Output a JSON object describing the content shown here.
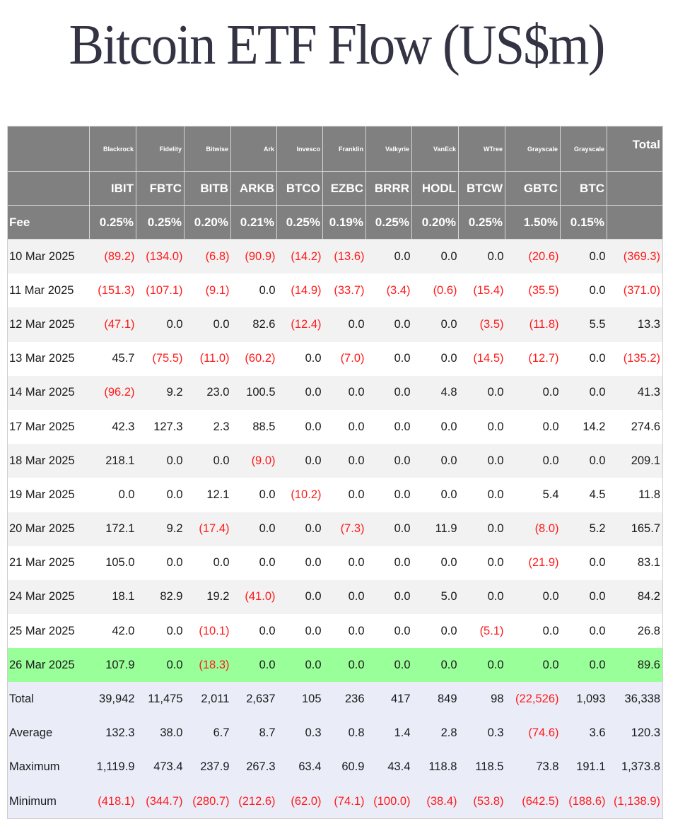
{
  "page": {
    "title": "Bitcoin ETF Flow (US$m)"
  },
  "table": {
    "issuers": [
      "Blackrock",
      "Fidelity",
      "Bitwise",
      "Ark",
      "Invesco",
      "Franklin",
      "Valkyrie",
      "VanEck",
      "WTree",
      "Grayscale",
      "Grayscale"
    ],
    "total_header": "Total",
    "tickers": [
      "IBIT",
      "FBTC",
      "BITB",
      "ARKB",
      "BTCO",
      "EZBC",
      "BRRR",
      "HODL",
      "BTCW",
      "GBTC",
      "BTC"
    ],
    "fee_label": "Fee",
    "fees": [
      "0.25%",
      "0.25%",
      "0.20%",
      "0.21%",
      "0.25%",
      "0.19%",
      "0.25%",
      "0.20%",
      "0.25%",
      "1.50%",
      "0.15%"
    ],
    "rows": [
      {
        "date": "10 Mar 2025",
        "values": [
          "(89.2)",
          "(134.0)",
          "(6.8)",
          "(90.9)",
          "(14.2)",
          "(13.6)",
          "0.0",
          "0.0",
          "0.0",
          "(20.6)",
          "0.0"
        ],
        "total": "(369.3)"
      },
      {
        "date": "11 Mar 2025",
        "values": [
          "(151.3)",
          "(107.1)",
          "(9.1)",
          "0.0",
          "(14.9)",
          "(33.7)",
          "(3.4)",
          "(0.6)",
          "(15.4)",
          "(35.5)",
          "0.0"
        ],
        "total": "(371.0)"
      },
      {
        "date": "12 Mar 2025",
        "values": [
          "(47.1)",
          "0.0",
          "0.0",
          "82.6",
          "(12.4)",
          "0.0",
          "0.0",
          "0.0",
          "(3.5)",
          "(11.8)",
          "5.5"
        ],
        "total": "13.3"
      },
      {
        "date": "13 Mar 2025",
        "values": [
          "45.7",
          "(75.5)",
          "(11.0)",
          "(60.2)",
          "0.0",
          "(7.0)",
          "0.0",
          "0.0",
          "(14.5)",
          "(12.7)",
          "0.0"
        ],
        "total": "(135.2)"
      },
      {
        "date": "14 Mar 2025",
        "values": [
          "(96.2)",
          "9.2",
          "23.0",
          "100.5",
          "0.0",
          "0.0",
          "0.0",
          "4.8",
          "0.0",
          "0.0",
          "0.0"
        ],
        "total": "41.3"
      },
      {
        "date": "17 Mar 2025",
        "values": [
          "42.3",
          "127.3",
          "2.3",
          "88.5",
          "0.0",
          "0.0",
          "0.0",
          "0.0",
          "0.0",
          "0.0",
          "14.2"
        ],
        "total": "274.6"
      },
      {
        "date": "18 Mar 2025",
        "values": [
          "218.1",
          "0.0",
          "0.0",
          "(9.0)",
          "0.0",
          "0.0",
          "0.0",
          "0.0",
          "0.0",
          "0.0",
          "0.0"
        ],
        "total": "209.1"
      },
      {
        "date": "19 Mar 2025",
        "values": [
          "0.0",
          "0.0",
          "12.1",
          "0.0",
          "(10.2)",
          "0.0",
          "0.0",
          "0.0",
          "0.0",
          "5.4",
          "4.5"
        ],
        "total": "11.8"
      },
      {
        "date": "20 Mar 2025",
        "values": [
          "172.1",
          "9.2",
          "(17.4)",
          "0.0",
          "0.0",
          "(7.3)",
          "0.0",
          "11.9",
          "0.0",
          "(8.0)",
          "5.2"
        ],
        "total": "165.7"
      },
      {
        "date": "21 Mar 2025",
        "values": [
          "105.0",
          "0.0",
          "0.0",
          "0.0",
          "0.0",
          "0.0",
          "0.0",
          "0.0",
          "0.0",
          "(21.9)",
          "0.0"
        ],
        "total": "83.1"
      },
      {
        "date": "24 Mar 2025",
        "values": [
          "18.1",
          "82.9",
          "19.2",
          "(41.0)",
          "0.0",
          "0.0",
          "0.0",
          "5.0",
          "0.0",
          "0.0",
          "0.0"
        ],
        "total": "84.2"
      },
      {
        "date": "25 Mar 2025",
        "values": [
          "42.0",
          "0.0",
          "(10.1)",
          "0.0",
          "0.0",
          "0.0",
          "0.0",
          "0.0",
          "(5.1)",
          "0.0",
          "0.0"
        ],
        "total": "26.8"
      },
      {
        "date": "26 Mar 2025",
        "values": [
          "107.9",
          "0.0",
          "(18.3)",
          "0.0",
          "0.0",
          "0.0",
          "0.0",
          "0.0",
          "0.0",
          "0.0",
          "0.0"
        ],
        "total": "89.6",
        "highlight": true
      }
    ],
    "stats": [
      {
        "label": "Total",
        "values": [
          "39,942",
          "11,475",
          "2,011",
          "2,637",
          "105",
          "236",
          "417",
          "849",
          "98",
          "(22,526)",
          "1,093"
        ],
        "total": "36,338"
      },
      {
        "label": "Average",
        "values": [
          "132.3",
          "38.0",
          "6.7",
          "8.7",
          "0.3",
          "0.8",
          "1.4",
          "2.8",
          "0.3",
          "(74.6)",
          "3.6"
        ],
        "total": "120.3"
      },
      {
        "label": "Maximum",
        "values": [
          "1,119.9",
          "473.4",
          "237.9",
          "267.3",
          "63.4",
          "60.9",
          "43.4",
          "118.8",
          "118.5",
          "73.8",
          "191.1"
        ],
        "total": "1,373.8"
      },
      {
        "label": "Minimum",
        "values": [
          "(418.1)",
          "(344.7)",
          "(280.7)",
          "(212.6)",
          "(62.0)",
          "(74.1)",
          "(100.0)",
          "(38.4)",
          "(53.8)",
          "(642.5)",
          "(188.6)"
        ],
        "total": "(1,138.9)"
      }
    ]
  },
  "colors": {
    "header_bg": "#808080",
    "title_text": "#333344",
    "negative_text": "#ff1a1a",
    "latest_row_bg": "#99ff99",
    "stats_bg": "#eaedf8",
    "stripe_bg": "#f2f2f2"
  }
}
